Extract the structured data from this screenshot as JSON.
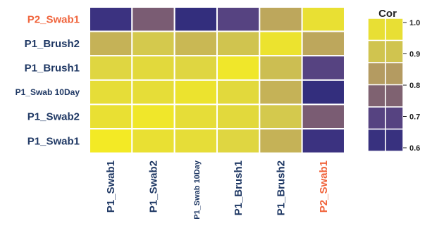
{
  "chart_data": {
    "type": "heatmap",
    "title": "",
    "x_labels": [
      "P1_Swab1",
      "P1_Swab2",
      "P1_Swab 10Day",
      "P1_Brush1",
      "P1_Brush2",
      "P2_Swab1"
    ],
    "y_labels_top_to_bottom": [
      "P2_Swab1",
      "P1_Brush2",
      "P1_Brush1",
      "P1_Swab 10Day",
      "P1_Swab2",
      "P1_Swab1"
    ],
    "highlight_label": "P2_Swab1",
    "values": [
      [
        0.64,
        0.76,
        0.62,
        0.7,
        0.85,
        0.97
      ],
      [
        0.87,
        0.91,
        0.88,
        0.9,
        0.98,
        0.85
      ],
      [
        0.94,
        0.95,
        0.94,
        0.99,
        0.89,
        0.7
      ],
      [
        0.96,
        0.96,
        0.98,
        0.95,
        0.87,
        0.62
      ],
      [
        0.97,
        0.99,
        0.96,
        0.95,
        0.91,
        0.76
      ],
      [
        1.0,
        0.97,
        0.96,
        0.94,
        0.87,
        0.64
      ]
    ],
    "legend": {
      "title": "Cor",
      "ticks": [
        "1.0",
        "0.9",
        "0.8",
        "0.7",
        "0.6"
      ],
      "range": [
        0.6,
        1.0
      ]
    },
    "colors": {
      "label": "#1f3864",
      "highlight": "#f0643c",
      "cell_border": "#ffffff"
    },
    "colorscale": [
      "#2b2a7a",
      "#4a3a86",
      "#7a5c73",
      "#b9a15f",
      "#d8cf4a",
      "#f3ea25"
    ]
  }
}
